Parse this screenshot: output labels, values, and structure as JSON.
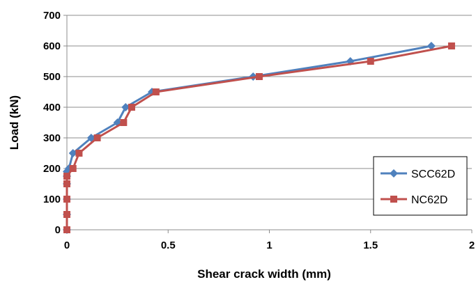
{
  "chart_data": {
    "type": "line",
    "title": "",
    "xlabel": "Shear crack width (mm)",
    "ylabel": "Load (kN)",
    "xlim": [
      0,
      2
    ],
    "ylim": [
      0,
      700
    ],
    "x_ticks": [
      0,
      0.5,
      1,
      1.5,
      2
    ],
    "x_tick_labels": [
      "0",
      "0.5",
      "1",
      "1.5",
      "2"
    ],
    "y_ticks": [
      0,
      100,
      200,
      300,
      400,
      500,
      600,
      700
    ],
    "y_tick_labels": [
      "0",
      "100",
      "200",
      "300",
      "400",
      "500",
      "600",
      "700"
    ],
    "grid": "horizontal",
    "legend_position": "bottom-right",
    "series": [
      {
        "name": "SCC62D",
        "color": "#4F81BD",
        "marker": "diamond",
        "x": [
          0,
          0,
          0,
          0,
          0,
          0,
          0.01,
          0.03,
          0.12,
          0.25,
          0.29,
          0.42,
          0.92,
          1.4,
          1.8
        ],
        "y": [
          0,
          50,
          100,
          150,
          175,
          190,
          200,
          250,
          300,
          350,
          400,
          450,
          500,
          550,
          600
        ]
      },
      {
        "name": "NC62D",
        "color": "#C0504D",
        "marker": "square",
        "x": [
          0,
          0,
          0,
          0,
          0,
          0.03,
          0.06,
          0.15,
          0.28,
          0.32,
          0.44,
          0.95,
          1.5,
          1.9
        ],
        "y": [
          0,
          50,
          100,
          150,
          175,
          200,
          250,
          300,
          350,
          400,
          450,
          500,
          550,
          600
        ]
      }
    ]
  }
}
